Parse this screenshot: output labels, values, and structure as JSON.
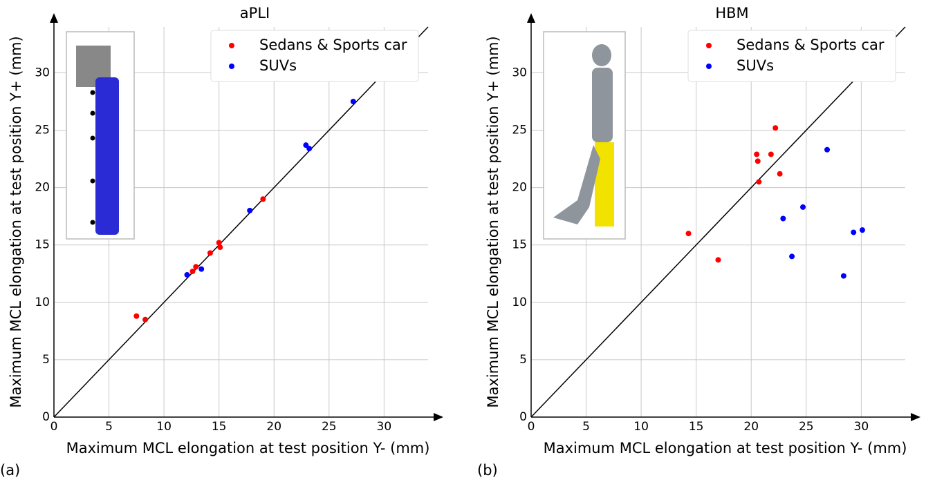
{
  "chart_data": [
    {
      "type": "scatter",
      "title": "aPLI",
      "panel_label": "(a)",
      "xlabel": "Maximum MCL elongation at test position Y- (mm)",
      "ylabel": "Maximum MCL elongation at test position Y+ (mm)",
      "xlim": [
        0,
        34
      ],
      "ylim": [
        0,
        34
      ],
      "xticks": [
        0,
        5,
        10,
        15,
        20,
        25,
        30
      ],
      "yticks": [
        0,
        5,
        10,
        15,
        20,
        25,
        30
      ],
      "grid": true,
      "legend": "upper right",
      "series": [
        {
          "name": "Sedans & Sports car",
          "color": "#ff0000",
          "x": [
            7.5,
            8.3,
            12.6,
            12.9,
            14.2,
            15.0,
            15.1,
            19.0
          ],
          "values": [
            8.8,
            8.5,
            12.7,
            13.1,
            14.3,
            15.2,
            14.8,
            19.0
          ]
        },
        {
          "name": "SUVs",
          "color": "#0000ff",
          "x": [
            12.1,
            13.4,
            17.8,
            22.9,
            23.2,
            27.2
          ],
          "values": [
            12.4,
            12.9,
            18.0,
            23.7,
            23.4,
            27.5
          ]
        }
      ]
    },
    {
      "type": "scatter",
      "title": "HBM",
      "panel_label": "(b)",
      "xlabel": "Maximum MCL elongation at test position Y- (mm)",
      "ylabel": "Maximum MCL elongation at test position Y+ (mm)",
      "xlim": [
        0,
        34
      ],
      "ylim": [
        0,
        34
      ],
      "xticks": [
        0,
        5,
        10,
        15,
        20,
        25,
        30
      ],
      "yticks": [
        0,
        5,
        10,
        15,
        20,
        25,
        30
      ],
      "grid": true,
      "legend": "upper right",
      "series": [
        {
          "name": "Sedans & Sports car",
          "color": "#ff0000",
          "x": [
            14.3,
            17.0,
            20.5,
            20.6,
            20.7,
            21.8,
            22.2,
            22.6
          ],
          "values": [
            16.0,
            13.7,
            22.9,
            22.3,
            20.5,
            22.9,
            25.2,
            21.2
          ]
        },
        {
          "name": "SUVs",
          "color": "#0000ff",
          "x": [
            24.7,
            22.9,
            23.7,
            26.9,
            28.4,
            29.3,
            30.1
          ],
          "values": [
            18.3,
            17.3,
            14.0,
            23.3,
            12.3,
            16.1,
            16.3
          ]
        }
      ]
    }
  ]
}
